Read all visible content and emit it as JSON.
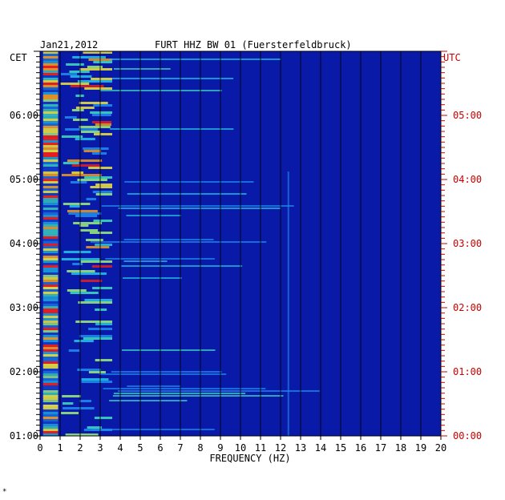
{
  "chart_data": {
    "type": "heatmap",
    "date": "Jan21,2012",
    "title": "FURT HHZ BW 01 (Fuersterfeldbruck)",
    "left_axis_label": "CET",
    "right_axis_label": "UTC",
    "xlabel": "FREQUENCY (HZ)",
    "xlim": [
      0,
      20
    ],
    "x_ticks": [
      "0",
      "1",
      "2",
      "3",
      "4",
      "5",
      "6",
      "7",
      "8",
      "9",
      "10",
      "11",
      "12",
      "13",
      "14",
      "15",
      "16",
      "17",
      "18",
      "19",
      "20"
    ],
    "y_ticks_left": [
      "01:00",
      "02:00",
      "03:00",
      "04:00",
      "05:00",
      "06:00"
    ],
    "y_ticks_right": [
      "00:00",
      "01:00",
      "02:00",
      "03:00",
      "04:00",
      "05:00"
    ],
    "time_range_cet": [
      "01:00",
      "07:00"
    ],
    "footnote": "*",
    "colors": {
      "background": "#0a1aa8",
      "grid": "#000000",
      "left_text": "#000000",
      "right_text": "#cc0000",
      "mid": "#1e8ff0",
      "hot": "#e8201c"
    }
  }
}
